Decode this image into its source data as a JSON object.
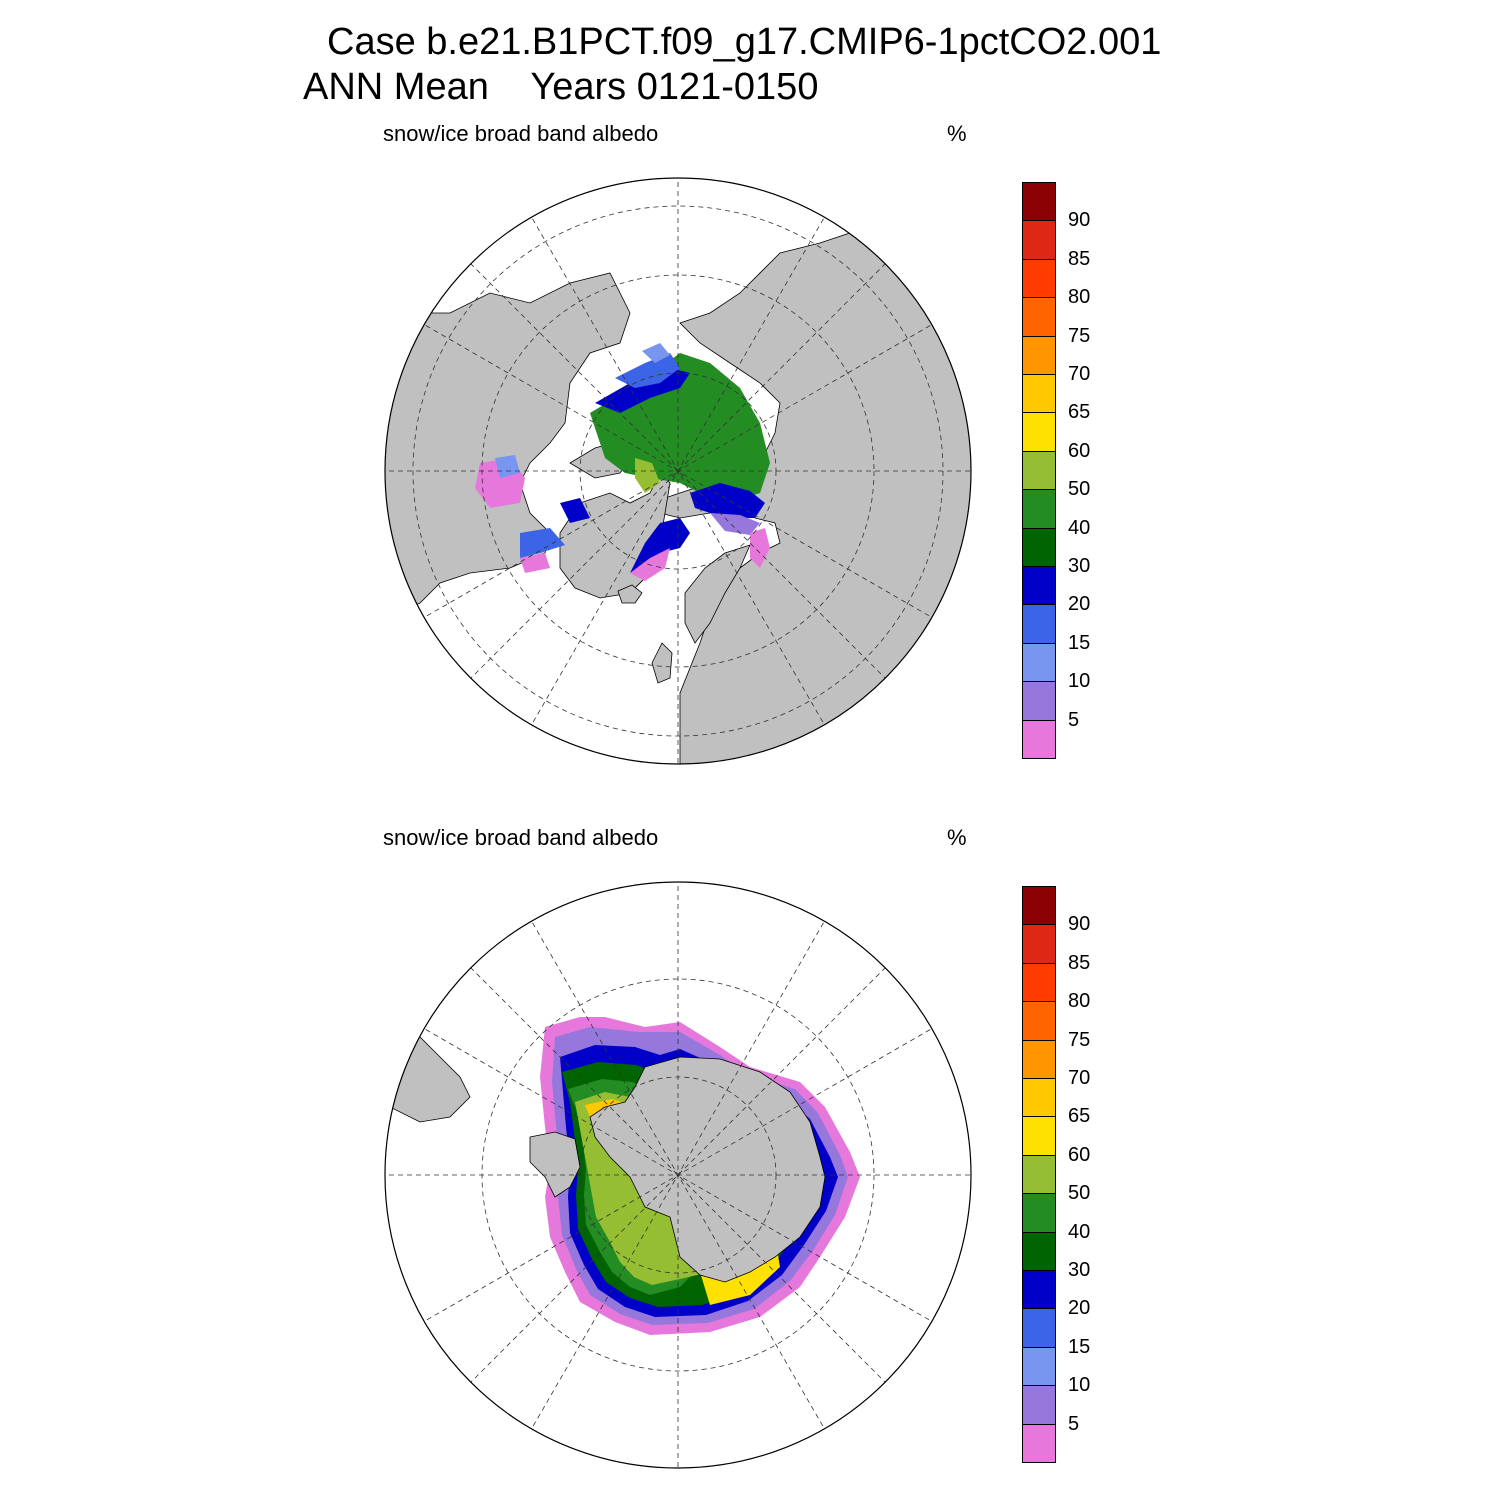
{
  "title": {
    "line1": "Case b.e21.B1PCT.f09_g17.CMIP6-1pctCO2.001",
    "line2": "ANN Mean    Years 0121-0150"
  },
  "panels": [
    {
      "hemisphere": "north",
      "variable_label": "snow/ice broad band albedo",
      "units_label": "%"
    },
    {
      "hemisphere": "south",
      "variable_label": "snow/ice broad band albedo",
      "units_label": "%"
    }
  ],
  "colorbar": {
    "tick_labels": [
      "90",
      "85",
      "80",
      "75",
      "70",
      "65",
      "60",
      "50",
      "40",
      "30",
      "20",
      "15",
      "10",
      "5"
    ],
    "colors_top_to_bottom": [
      "#8b0000",
      "#dc2814",
      "#ff3c00",
      "#ff6400",
      "#ff9600",
      "#ffc800",
      "#ffe100",
      "#96be32",
      "#238c23",
      "#006400",
      "#0000c8",
      "#3c64e6",
      "#7896f0",
      "#9678dc",
      "#e678dc"
    ],
    "land_color": "#c0c0c0"
  }
}
